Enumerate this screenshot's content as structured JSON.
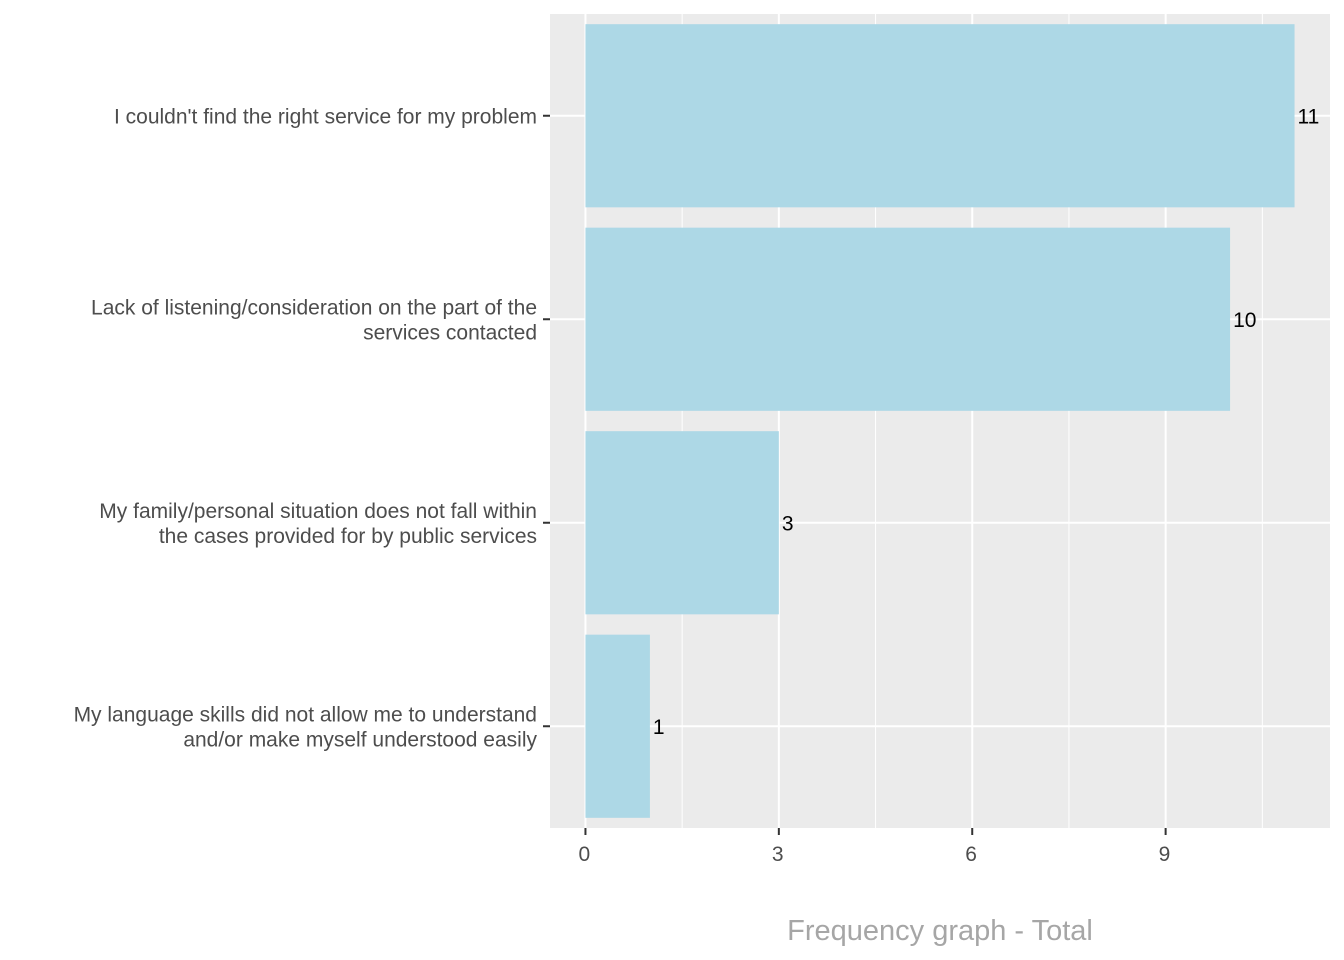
{
  "chart_data": {
    "type": "bar",
    "orientation": "horizontal",
    "categories": [
      [
        "I couldn't find the right service for my problem"
      ],
      [
        "Lack of listening/consideration on the part of the",
        "services contacted"
      ],
      [
        "My family/personal situation does not fall within",
        "the cases provided for by public services"
      ],
      [
        "My language skills did not allow me to understand",
        "and/or make myself understood easily"
      ]
    ],
    "values": [
      11,
      10,
      3,
      1
    ],
    "data_labels": [
      "11",
      "10",
      "3",
      "1"
    ],
    "x_ticks": [
      0,
      3,
      6,
      9
    ],
    "x_tick_labels": [
      "0",
      "3",
      "6",
      "9"
    ],
    "xlim": [
      -0.55,
      11.55
    ],
    "xlabel": "Frequency graph - Total",
    "ylabel": "",
    "grid": true,
    "legend": "none",
    "colors": {
      "bar": "#add8e6",
      "panel": "#ebebeb",
      "grid_major": "#ffffff",
      "axis_text": "#4d4d4d",
      "axis_title": "#a6a6a6"
    }
  }
}
